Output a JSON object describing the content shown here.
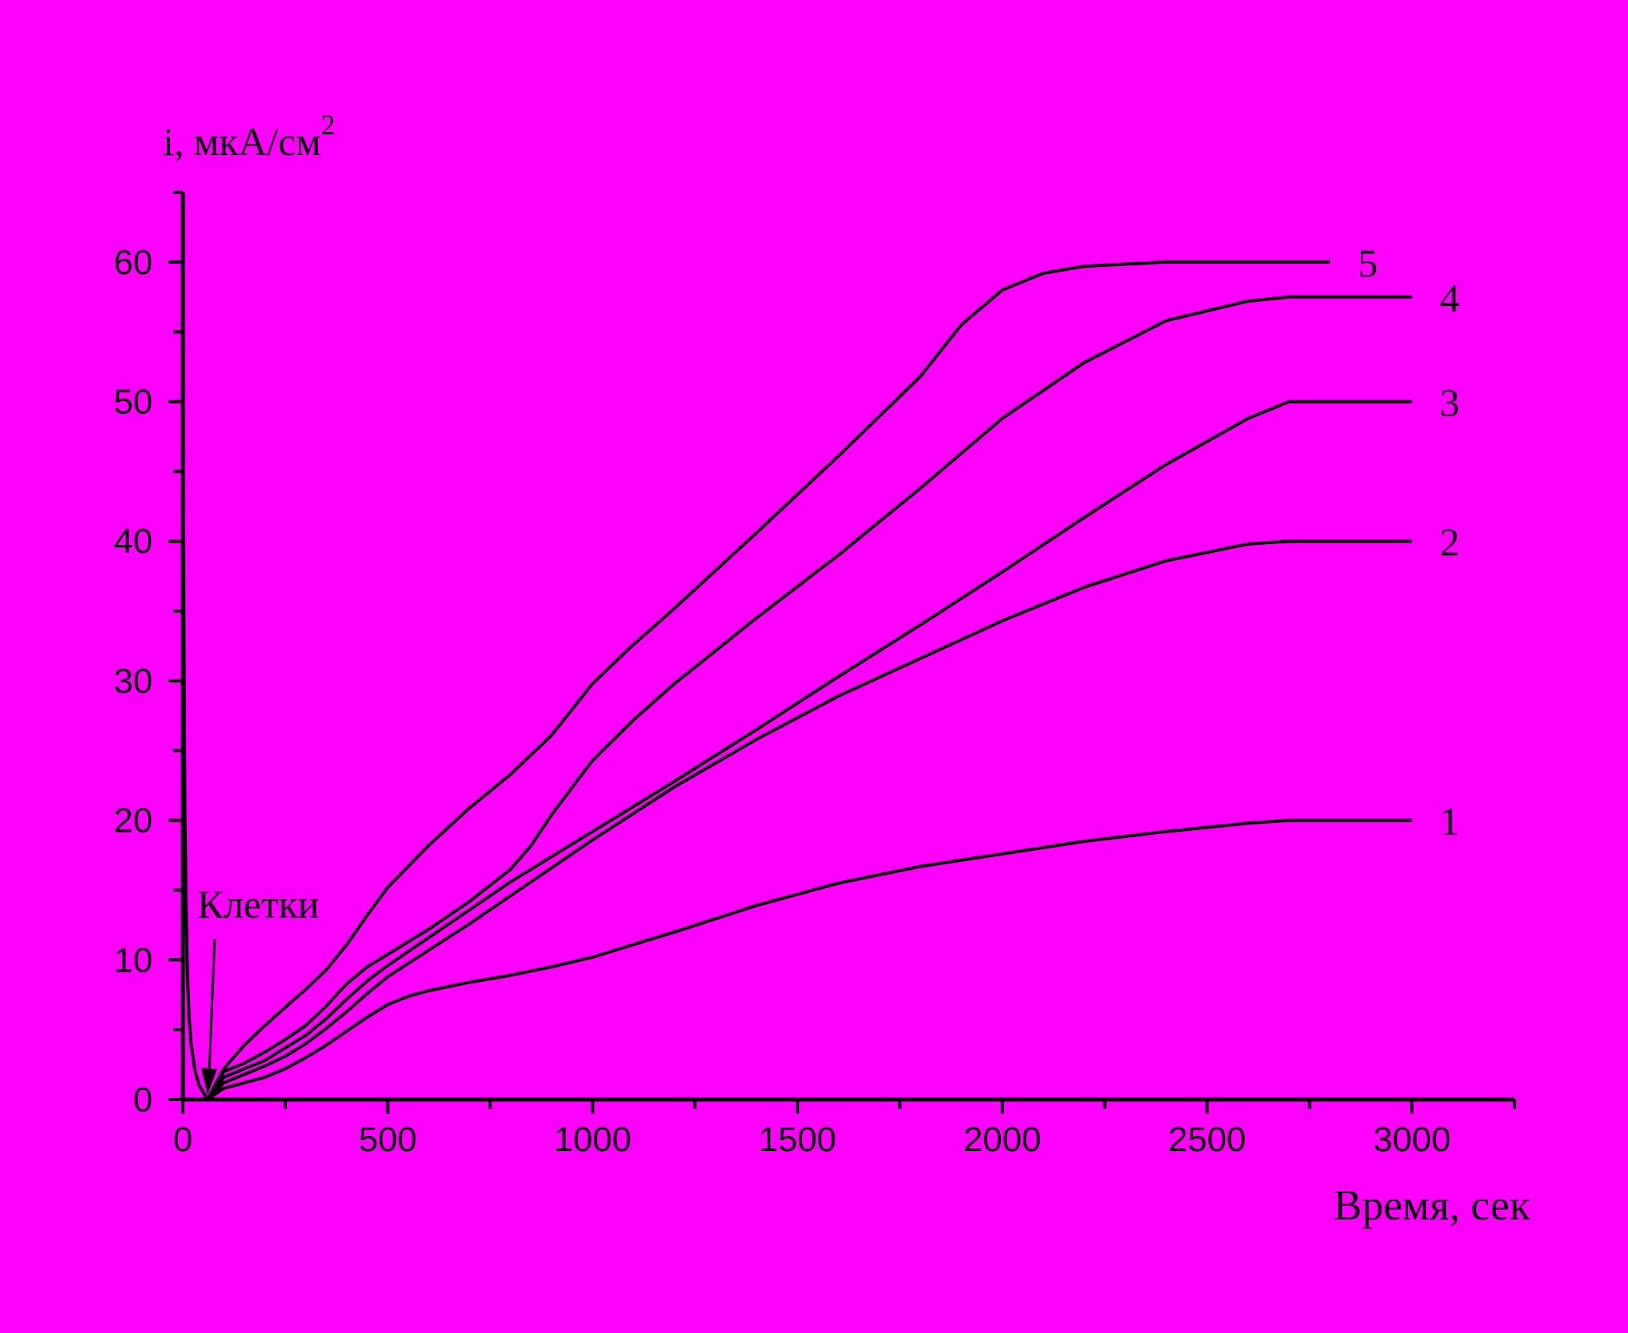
{
  "chart_data": {
    "type": "line",
    "xlabel": "Время, сек",
    "ylabel": "i, мкА/см",
    "ylabel_sup": "2",
    "xlim": [
      0,
      3250
    ],
    "ylim": [
      0,
      65
    ],
    "xticks": [
      0,
      500,
      1000,
      1500,
      2000,
      2500,
      3000
    ],
    "xtick_labels": [
      "0",
      "500",
      "1000",
      "1500",
      "2000",
      "2500",
      "3000"
    ],
    "yticks": [
      0,
      10,
      20,
      30,
      40,
      50,
      60
    ],
    "ytick_labels": [
      "0",
      "10",
      "20",
      "30",
      "40",
      "50",
      "60"
    ],
    "grid": false,
    "background": "#FF00FF",
    "line_color": "#000000",
    "annotation": {
      "text": "Клетки",
      "x": 60,
      "y": 0
    },
    "initial_spike": {
      "x": [
        0,
        5,
        10,
        15,
        20,
        25,
        30,
        40,
        50,
        60
      ],
      "y": [
        47,
        20,
        10,
        6,
        4,
        3,
        2,
        1,
        0.5,
        0
      ]
    },
    "series": [
      {
        "name": "1",
        "x": [
          60,
          100,
          150,
          200,
          250,
          300,
          350,
          400,
          450,
          500,
          550,
          600,
          700,
          800,
          900,
          1000,
          1200,
          1400,
          1600,
          1800,
          2000,
          2200,
          2400,
          2600,
          2700,
          2800,
          3000
        ],
        "y": [
          0,
          0.8,
          1.2,
          1.6,
          2.2,
          3.0,
          3.9,
          4.9,
          5.9,
          6.8,
          7.4,
          7.8,
          8.4,
          8.9,
          9.5,
          10.2,
          12.0,
          13.9,
          15.5,
          16.7,
          17.6,
          18.5,
          19.2,
          19.8,
          20.0,
          20.0,
          20.0
        ]
      },
      {
        "name": "2",
        "x": [
          60,
          100,
          150,
          200,
          250,
          300,
          350,
          400,
          450,
          500,
          600,
          700,
          800,
          900,
          1000,
          1200,
          1400,
          1600,
          1800,
          2000,
          2200,
          2400,
          2600,
          2700,
          2800,
          3000
        ],
        "y": [
          0,
          1.2,
          1.8,
          2.4,
          3.1,
          4.0,
          5.1,
          6.3,
          7.6,
          8.8,
          10.7,
          12.6,
          14.6,
          16.6,
          18.6,
          22.4,
          25.8,
          28.9,
          31.6,
          34.3,
          36.7,
          38.6,
          39.8,
          40.0,
          40.0,
          40.0
        ]
      },
      {
        "name": "3",
        "x": [
          60,
          100,
          150,
          200,
          250,
          300,
          350,
          400,
          450,
          500,
          600,
          700,
          800,
          900,
          1000,
          1200,
          1400,
          1600,
          1800,
          2000,
          2200,
          2400,
          2600,
          2700,
          2800,
          3000
        ],
        "y": [
          0,
          1.6,
          2.2,
          2.8,
          3.7,
          4.6,
          5.8,
          7.2,
          8.5,
          9.6,
          11.6,
          13.6,
          15.6,
          17.4,
          19.2,
          22.8,
          26.5,
          30.3,
          34.0,
          37.8,
          41.7,
          45.5,
          48.8,
          50.0,
          50.0,
          50.0
        ]
      },
      {
        "name": "4",
        "x": [
          60,
          100,
          150,
          200,
          250,
          300,
          350,
          400,
          450,
          500,
          600,
          700,
          800,
          850,
          900,
          1000,
          1100,
          1200,
          1400,
          1600,
          1800,
          2000,
          2200,
          2400,
          2600,
          2700,
          2800,
          3000
        ],
        "y": [
          0,
          2.0,
          2.6,
          3.4,
          4.3,
          5.3,
          6.7,
          8.3,
          9.5,
          10.4,
          12.2,
          14.2,
          16.5,
          18.2,
          20.4,
          24.3,
          27.2,
          29.8,
          34.5,
          39.0,
          43.8,
          48.8,
          52.8,
          55.8,
          57.2,
          57.5,
          57.5,
          57.5
        ]
      },
      {
        "name": "5",
        "x": [
          60,
          100,
          150,
          200,
          250,
          300,
          350,
          400,
          450,
          500,
          600,
          700,
          800,
          900,
          1000,
          1100,
          1200,
          1400,
          1600,
          1800,
          1900,
          2000,
          2100,
          2200,
          2400,
          2600,
          2800
        ],
        "y": [
          0,
          2.2,
          3.9,
          5.3,
          6.6,
          7.9,
          9.3,
          11.1,
          13.2,
          15.2,
          18.2,
          20.9,
          23.3,
          26.1,
          29.8,
          32.6,
          35.2,
          40.6,
          46.1,
          51.8,
          55.5,
          58.0,
          59.2,
          59.7,
          60.0,
          60.0,
          60.0
        ]
      }
    ]
  }
}
